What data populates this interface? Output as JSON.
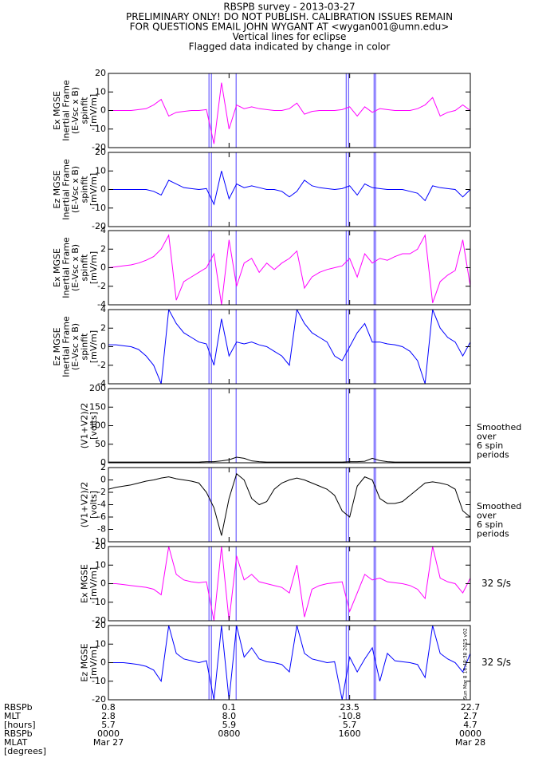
{
  "header": [
    "RBSPB survey - 2013-03-27",
    "PRELIMINARY ONLY! DO NOT PUBLISH. CALIBRATION ISSUES REMAIN",
    "FOR QUESTIONS EMAIL JOHN WYGANT AT <wygan001@umn.edu>",
    "Vertical lines for eclipse",
    "Flagged data indicated by change in color"
  ],
  "eclipse": {
    "x": [
      6.67,
      6.83,
      8.47,
      15.77,
      15.93,
      17.62,
      17.72
    ],
    "color": "#6a5cff"
  },
  "stamp": "Sun Mar 8 16:48:38 2015 v02",
  "ephemeris": {
    "labels": [
      "RBSPb",
      "MLT",
      "[hours]",
      "RBSPb",
      "MLAT",
      "[degrees]"
    ],
    "rows": [
      [
        "0.8",
        "0.1",
        "23.5",
        "22.7"
      ],
      [
        "2.8",
        "8.0",
        "-10.8",
        "2.7"
      ],
      [
        "5.7",
        "5.9",
        "5.7",
        "4.7"
      ]
    ],
    "dates": [
      "Mar 27",
      null,
      null,
      "Mar 28"
    ]
  },
  "chart_data": [
    {
      "type": "line",
      "ylabel": [
        "Ex MGSE",
        "Inertial Frame",
        "(E-Vsc x B)",
        "spinfit",
        "[mV/m]"
      ],
      "xlim": [
        0,
        24
      ],
      "ylim": [
        -20,
        20
      ],
      "yticks": [
        -20,
        -10,
        0,
        10,
        20
      ],
      "x": [
        0,
        0.5,
        1,
        1.5,
        2,
        2.5,
        3,
        3.5,
        4,
        4.5,
        5,
        5.5,
        6,
        6.5,
        7,
        7.5,
        8,
        8.5,
        9,
        9.5,
        10,
        10.5,
        11,
        11.5,
        12,
        12.5,
        13,
        13.5,
        14,
        14.5,
        15,
        15.5,
        16,
        16.5,
        17,
        17.5,
        18,
        18.5,
        19,
        19.5,
        20,
        20.5,
        21,
        21.5,
        22,
        22.5,
        23,
        23.5,
        24
      ],
      "series": [
        {
          "color": "#ff00ff",
          "values": [
            0,
            0,
            0,
            0,
            0.5,
            1,
            3,
            6,
            -3,
            -1,
            -0.5,
            0,
            0,
            0.5,
            -18,
            15,
            -10,
            3,
            1,
            2,
            1,
            0.5,
            0,
            0,
            1,
            4,
            -2,
            -0.5,
            0,
            0,
            0,
            0.5,
            2,
            -3,
            2,
            -1,
            1,
            0.5,
            0,
            0,
            0,
            1,
            3,
            7,
            -3,
            -1,
            0,
            3,
            0
          ]
        }
      ]
    },
    {
      "type": "line",
      "ylabel": [
        "Ez MGSE",
        "Inertial Frame",
        "(E-Vsc x B)",
        "spinfit",
        "[mV/m]"
      ],
      "xlim": [
        0,
        24
      ],
      "ylim": [
        -20,
        20
      ],
      "yticks": [
        -20,
        -10,
        0,
        10,
        20
      ],
      "x": [
        0,
        0.5,
        1,
        1.5,
        2,
        2.5,
        3,
        3.5,
        4,
        4.5,
        5,
        5.5,
        6,
        6.5,
        7,
        7.5,
        8,
        8.5,
        9,
        9.5,
        10,
        10.5,
        11,
        11.5,
        12,
        12.5,
        13,
        13.5,
        14,
        14.5,
        15,
        15.5,
        16,
        16.5,
        17,
        17.5,
        18,
        18.5,
        19,
        19.5,
        20,
        20.5,
        21,
        21.5,
        22,
        22.5,
        23,
        23.5,
        24
      ],
      "series": [
        {
          "color": "#0000ff",
          "values": [
            0,
            0,
            0,
            0,
            0,
            0,
            -1,
            -3,
            5,
            3,
            1,
            0.5,
            0,
            0.5,
            -8,
            10,
            -5,
            3,
            1,
            2,
            1,
            0,
            0,
            -1,
            -4,
            -1,
            5,
            2,
            1,
            0.5,
            0,
            0.5,
            2,
            -3,
            3,
            1,
            0.5,
            0,
            0,
            0,
            -1,
            -2,
            -6,
            2,
            1,
            0.5,
            0,
            -4,
            0
          ]
        }
      ]
    },
    {
      "type": "line",
      "ylabel": [
        "Ex MGSE",
        "Inertial Frame",
        "(E-Vsc x B)",
        "spinfit",
        "[mV/m]"
      ],
      "xlim": [
        0,
        24
      ],
      "ylim": [
        -4,
        4
      ],
      "yticks": [
        -4,
        -2,
        0,
        2,
        4
      ],
      "x": [
        0,
        0.5,
        1,
        1.5,
        2,
        2.5,
        3,
        3.5,
        4,
        4.5,
        5,
        5.5,
        6,
        6.5,
        7,
        7.5,
        8,
        8.5,
        9,
        9.5,
        10,
        10.5,
        11,
        11.5,
        12,
        12.5,
        13,
        13.5,
        14,
        14.5,
        15,
        15.5,
        16,
        16.5,
        17,
        17.5,
        18,
        18.5,
        19,
        19.5,
        20,
        20.5,
        21,
        21.5,
        22,
        22.5,
        23,
        23.5,
        24
      ],
      "series": [
        {
          "color": "#ff00ff",
          "values": [
            0,
            0.1,
            0.2,
            0.3,
            0.5,
            0.8,
            1.2,
            2,
            3.5,
            -3.5,
            -1.5,
            -1,
            -0.5,
            0,
            1.5,
            -4,
            3,
            -2,
            0.5,
            1,
            -0.5,
            0.5,
            -0.2,
            0.5,
            1,
            1.8,
            -2.2,
            -1,
            -0.5,
            -0.2,
            0,
            0.2,
            1,
            -1,
            1.5,
            0.5,
            1,
            0.8,
            1.2,
            1.5,
            1.5,
            2,
            3.5,
            -3.8,
            -1.5,
            -0.8,
            -0.3,
            3,
            -2
          ]
        }
      ]
    },
    {
      "type": "line",
      "ylabel": [
        "Ez MGSE",
        "Inertial Frame",
        "(E-Vsc x B)",
        "spinfit",
        "[mV/m]"
      ],
      "xlim": [
        0,
        24
      ],
      "ylim": [
        -4,
        4
      ],
      "yticks": [
        -4,
        -2,
        0,
        2,
        4
      ],
      "x": [
        0,
        0.5,
        1,
        1.5,
        2,
        2.5,
        3,
        3.5,
        4,
        4.5,
        5,
        5.5,
        6,
        6.5,
        7,
        7.5,
        8,
        8.5,
        9,
        9.5,
        10,
        10.5,
        11,
        11.5,
        12,
        12.5,
        13,
        13.5,
        14,
        14.5,
        15,
        15.5,
        16,
        16.5,
        17,
        17.5,
        18,
        18.5,
        19,
        19.5,
        20,
        20.5,
        21,
        21.5,
        22,
        22.5,
        23,
        23.5,
        24
      ],
      "series": [
        {
          "color": "#0000ff",
          "values": [
            0.2,
            0.2,
            0.1,
            0,
            -0.3,
            -1,
            -2,
            -4,
            4,
            2.5,
            1.5,
            1,
            0.5,
            0.3,
            -2,
            3,
            -1,
            0.5,
            0.3,
            0.5,
            0.2,
            0,
            -0.5,
            -1,
            -2,
            4,
            2.5,
            1.5,
            1,
            0.5,
            -1,
            -1.5,
            0,
            1.5,
            2.5,
            0.5,
            0.5,
            0.3,
            0.2,
            0,
            -0.5,
            -1.5,
            -4,
            4,
            2,
            1,
            0.5,
            -1,
            0.5
          ]
        }
      ]
    },
    {
      "type": "line",
      "ylabel": [
        "(V1+V2)/2",
        "[volts]"
      ],
      "annotation": [
        "Smoothed",
        "over",
        "6 spin",
        "periods"
      ],
      "annotation_color": "#000000",
      "xlim": [
        0,
        24
      ],
      "ylim": [
        0,
        200
      ],
      "yticks": [
        0,
        50,
        100,
        150,
        200
      ],
      "x": [
        0,
        0.5,
        1,
        1.5,
        2,
        2.5,
        3,
        3.5,
        4,
        4.5,
        5,
        5.5,
        6,
        6.5,
        7,
        7.5,
        8,
        8.5,
        9,
        9.5,
        10,
        10.5,
        11,
        11.5,
        12,
        12.5,
        13,
        13.5,
        14,
        14.5,
        15,
        15.5,
        16,
        16.5,
        17,
        17.5,
        18,
        18.5,
        19,
        19.5,
        20,
        20.5,
        21,
        21.5,
        22,
        22.5,
        23,
        23.5,
        24
      ],
      "series": [
        {
          "color": "#000000",
          "values": [
            2,
            2,
            2,
            2,
            2,
            2,
            2,
            2,
            2,
            2,
            2,
            2,
            2,
            3,
            3,
            5,
            8,
            15,
            12,
            5,
            3,
            2,
            2,
            2,
            2,
            2,
            2,
            2,
            2,
            2,
            2,
            2,
            3,
            3,
            4,
            12,
            6,
            3,
            2,
            2,
            2,
            2,
            2,
            2,
            2,
            2,
            2,
            2,
            2
          ]
        }
      ]
    },
    {
      "type": "line",
      "ylabel": [
        "(V1+V2)/2",
        "[volts]"
      ],
      "annotation": [
        "Smoothed",
        "over",
        "6 spin",
        "periods"
      ],
      "annotation_color": "#000000",
      "xlim": [
        0,
        24
      ],
      "ylim": [
        -10,
        2
      ],
      "yticks": [
        -10,
        -8,
        -6,
        -4,
        -2,
        0,
        2
      ],
      "x": [
        0,
        0.5,
        1,
        1.5,
        2,
        2.5,
        3,
        3.5,
        4,
        4.5,
        5,
        5.5,
        6,
        6.5,
        7,
        7.5,
        8,
        8.5,
        9,
        9.5,
        10,
        10.5,
        11,
        11.5,
        12,
        12.5,
        13,
        13.5,
        14,
        14.5,
        15,
        15.5,
        16,
        16.5,
        17,
        17.5,
        18,
        18.5,
        19,
        19.5,
        20,
        20.5,
        21,
        21.5,
        22,
        22.5,
        23,
        23.5,
        24
      ],
      "series": [
        {
          "color": "#000000",
          "values": [
            -1.5,
            -1.2,
            -1,
            -0.8,
            -0.5,
            -0.2,
            0,
            0.3,
            0.5,
            0.2,
            0,
            -0.2,
            -0.5,
            -2,
            -4.5,
            -9,
            -3,
            1,
            0,
            -3,
            -4,
            -3.5,
            -1.5,
            -0.5,
            0,
            0.3,
            0,
            -0.5,
            -1,
            -1.5,
            -2.5,
            -5,
            -6,
            -1,
            0.5,
            0,
            -3,
            -3.8,
            -3.8,
            -3.5,
            -2.5,
            -1.5,
            -0.5,
            -0.3,
            -0.5,
            -0.8,
            -1.5,
            -5,
            -6
          ]
        }
      ]
    },
    {
      "type": "line",
      "ylabel": [
        "Ex MGSE",
        "[mV/m]"
      ],
      "annotation": [
        "32 S/s"
      ],
      "annotation_color": "#ff00ff",
      "xlim": [
        0,
        24
      ],
      "ylim": [
        -20,
        20
      ],
      "yticks": [
        -20,
        -10,
        0,
        10,
        20
      ],
      "x": [
        0,
        0.5,
        1,
        1.5,
        2,
        2.5,
        3,
        3.5,
        4,
        4.5,
        5,
        5.5,
        6,
        6.5,
        7,
        7.5,
        8,
        8.5,
        9,
        9.5,
        10,
        10.5,
        11,
        11.5,
        12,
        12.5,
        13,
        13.5,
        14,
        14.5,
        15,
        15.5,
        16,
        16.5,
        17,
        17.5,
        18,
        18.5,
        19,
        19.5,
        20,
        20.5,
        21,
        21.5,
        22,
        22.5,
        23,
        23.5,
        24
      ],
      "series": [
        {
          "color": "#ff00ff",
          "values": [
            0,
            0,
            -0.5,
            -1,
            -1.5,
            -2,
            -3,
            -6,
            20,
            5,
            2,
            1,
            0.5,
            1,
            -20,
            20,
            -20,
            15,
            2,
            5,
            1,
            0,
            -1,
            -2,
            -5,
            10,
            -18,
            -3,
            -1,
            0,
            0.5,
            1,
            -15,
            -5,
            5,
            2,
            3,
            1,
            0.5,
            0,
            -1,
            -3,
            -8,
            20,
            3,
            1,
            0,
            -5,
            3
          ]
        }
      ]
    },
    {
      "type": "line",
      "ylabel": [
        "Ez MGSE",
        "[mV/m]"
      ],
      "annotation": [
        "32 S/s"
      ],
      "annotation_color": "#0000ff",
      "xlim": [
        0,
        24
      ],
      "ylim": [
        -20,
        20
      ],
      "yticks": [
        -20,
        -10,
        0,
        10,
        20
      ],
      "xticks": [
        {
          "value": 0,
          "label": "0000"
        },
        {
          "value": 8,
          "label": "0800"
        },
        {
          "value": 16,
          "label": "1600"
        },
        {
          "value": 24,
          "label": "0000"
        }
      ],
      "x": [
        0,
        0.5,
        1,
        1.5,
        2,
        2.5,
        3,
        3.5,
        4,
        4.5,
        5,
        5.5,
        6,
        6.5,
        7,
        7.5,
        8,
        8.5,
        9,
        9.5,
        10,
        10.5,
        11,
        11.5,
        12,
        12.5,
        13,
        13.5,
        14,
        14.5,
        15,
        15.5,
        16,
        16.5,
        17,
        17.5,
        18,
        18.5,
        19,
        19.5,
        20,
        20.5,
        21,
        21.5,
        22,
        22.5,
        23,
        23.5,
        24
      ],
      "series": [
        {
          "color": "#0000ff",
          "values": [
            0,
            0,
            0,
            -0.5,
            -1,
            -2,
            -4,
            -10,
            20,
            5,
            2,
            1,
            0,
            1,
            -20,
            20,
            -20,
            20,
            3,
            8,
            2,
            0.5,
            0,
            -1,
            -5,
            20,
            5,
            2,
            1,
            0,
            0.5,
            -20,
            3,
            -5,
            2,
            8,
            -10,
            5,
            1,
            0.5,
            0,
            -1,
            -8,
            20,
            5,
            2,
            0,
            -5,
            5
          ]
        }
      ]
    }
  ]
}
